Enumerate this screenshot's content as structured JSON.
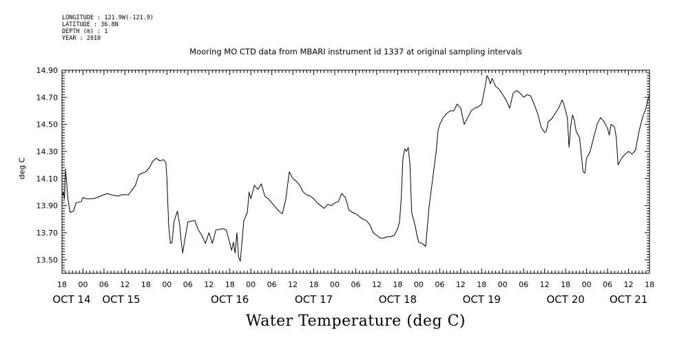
{
  "header": {
    "longitude": "LONGITUDE : 121.9W(-121.9)",
    "latitude": "LATITUDE : 36.8N",
    "depth": "DEPTH (m) : 1",
    "year": "YEAR : 2010"
  },
  "chart_data": {
    "type": "line",
    "title": "Mooring MO CTD data from MBARI instrument id 1337 at original sampling intervals",
    "xlabel": "Water Temperature (deg C)",
    "ylabel": "deg C",
    "ylim": [
      13.4,
      14.9
    ],
    "yticks": [
      "13.50",
      "13.70",
      "13.90",
      "14.10",
      "14.30",
      "14.50",
      "14.70",
      "14.90"
    ],
    "xlim_hours": [
      0,
      168
    ],
    "xticks_hour_labels": [
      "18",
      "00",
      "06",
      "12",
      "18",
      "00",
      "06",
      "12",
      "18",
      "00",
      "06",
      "12",
      "18",
      "00",
      "06",
      "12",
      "18",
      "00",
      "06",
      "12",
      "18",
      "00",
      "06",
      "12",
      "18",
      "00",
      "06",
      "12",
      "18"
    ],
    "xticks_day_labels": [
      "OCT 14",
      "OCT 15",
      "OCT 16",
      "OCT 17",
      "OCT 18",
      "OCT 19",
      "OCT 20",
      "OCT 21"
    ],
    "grid": false,
    "series": [
      {
        "values": [
          [
            0.0,
            13.97
          ],
          [
            0.4,
            14.0
          ],
          [
            0.7,
            13.95
          ],
          [
            1.0,
            14.17
          ],
          [
            1.3,
            14.08
          ],
          [
            1.7,
            13.95
          ],
          [
            2.3,
            13.85
          ],
          [
            3.3,
            13.86
          ],
          [
            4.0,
            13.92
          ],
          [
            5.5,
            13.93
          ],
          [
            6.0,
            13.96
          ],
          [
            7.0,
            13.95
          ],
          [
            9.0,
            13.95
          ],
          [
            10.0,
            13.96
          ],
          [
            12.0,
            13.98
          ],
          [
            13.0,
            13.99
          ],
          [
            14.0,
            13.98
          ],
          [
            16.0,
            13.97
          ],
          [
            17.0,
            13.98
          ],
          [
            18.0,
            13.98
          ],
          [
            19.0,
            13.98
          ],
          [
            21.0,
            14.05
          ],
          [
            22.0,
            14.13
          ],
          [
            24.0,
            14.15
          ],
          [
            25.0,
            14.18
          ],
          [
            26.0,
            14.23
          ],
          [
            27.0,
            14.25
          ],
          [
            28.0,
            14.23
          ],
          [
            29.0,
            14.24
          ],
          [
            29.7,
            14.22
          ],
          [
            30.0,
            14.1
          ],
          [
            30.5,
            13.75
          ],
          [
            31.0,
            13.62
          ],
          [
            31.5,
            13.63
          ],
          [
            32.0,
            13.78
          ],
          [
            33.0,
            13.86
          ],
          [
            33.7,
            13.75
          ],
          [
            34.0,
            13.66
          ],
          [
            34.5,
            13.55
          ],
          [
            35.0,
            13.63
          ],
          [
            36.0,
            13.78
          ],
          [
            38.0,
            13.79
          ],
          [
            39.0,
            13.72
          ],
          [
            40.0,
            13.68
          ],
          [
            41.0,
            13.62
          ],
          [
            42.0,
            13.7
          ],
          [
            43.0,
            13.62
          ],
          [
            44.0,
            13.72
          ],
          [
            46.0,
            13.73
          ],
          [
            47.0,
            13.72
          ],
          [
            48.0,
            13.62
          ],
          [
            48.5,
            13.57
          ],
          [
            49.0,
            13.63
          ],
          [
            49.5,
            13.55
          ],
          [
            50.0,
            13.7
          ],
          [
            50.5,
            13.52
          ],
          [
            51.0,
            13.49
          ],
          [
            52.0,
            13.79
          ],
          [
            53.0,
            13.85
          ],
          [
            53.5,
            14.0
          ],
          [
            54.0,
            13.95
          ],
          [
            55.0,
            14.05
          ],
          [
            56.0,
            14.02
          ],
          [
            57.0,
            14.06
          ],
          [
            58.0,
            13.97
          ],
          [
            59.0,
            13.95
          ],
          [
            60.0,
            13.92
          ],
          [
            61.0,
            13.89
          ],
          [
            62.0,
            13.86
          ],
          [
            63.0,
            13.84
          ],
          [
            64.0,
            13.95
          ],
          [
            65.0,
            14.15
          ],
          [
            66.0,
            14.1
          ],
          [
            67.0,
            14.08
          ],
          [
            68.0,
            14.05
          ],
          [
            69.0,
            14.0
          ],
          [
            70.0,
            13.98
          ],
          [
            71.0,
            13.97
          ],
          [
            72.0,
            13.95
          ],
          [
            73.0,
            13.92
          ],
          [
            74.0,
            13.9
          ],
          [
            75.0,
            13.88
          ],
          [
            76.0,
            13.91
          ],
          [
            77.0,
            13.9
          ],
          [
            78.0,
            13.92
          ],
          [
            79.0,
            13.93
          ],
          [
            79.5,
            13.96
          ],
          [
            80.0,
            13.99
          ],
          [
            81.0,
            13.96
          ],
          [
            81.5,
            13.92
          ],
          [
            82.0,
            13.87
          ],
          [
            83.0,
            13.85
          ],
          [
            84.0,
            13.84
          ],
          [
            85.0,
            13.82
          ],
          [
            86.0,
            13.8
          ],
          [
            87.0,
            13.79
          ],
          [
            88.0,
            13.76
          ],
          [
            89.0,
            13.7
          ],
          [
            90.0,
            13.68
          ],
          [
            91.0,
            13.66
          ],
          [
            92.0,
            13.66
          ],
          [
            93.0,
            13.67
          ],
          [
            94.0,
            13.67
          ],
          [
            95.0,
            13.68
          ],
          [
            96.0,
            13.73
          ],
          [
            96.5,
            13.78
          ],
          [
            97.0,
            13.95
          ],
          [
            97.5,
            14.25
          ],
          [
            98.0,
            14.32
          ],
          [
            98.5,
            14.3
          ],
          [
            99.0,
            14.33
          ],
          [
            99.5,
            14.2
          ],
          [
            100.0,
            13.85
          ],
          [
            101.0,
            13.75
          ],
          [
            101.5,
            13.68
          ],
          [
            102.0,
            13.63
          ],
          [
            103.0,
            13.62
          ],
          [
            104.0,
            13.6
          ],
          [
            105.0,
            13.9
          ],
          [
            106.0,
            14.1
          ],
          [
            107.0,
            14.3
          ],
          [
            107.5,
            14.45
          ],
          [
            108.0,
            14.5
          ],
          [
            109.0,
            14.55
          ],
          [
            110.0,
            14.58
          ],
          [
            111.0,
            14.6
          ],
          [
            112.0,
            14.6
          ],
          [
            113.0,
            14.65
          ],
          [
            114.0,
            14.62
          ],
          [
            115.0,
            14.5
          ],
          [
            116.0,
            14.55
          ],
          [
            117.0,
            14.6
          ],
          [
            118.0,
            14.62
          ],
          [
            119.0,
            14.63
          ],
          [
            120.0,
            14.65
          ],
          [
            121.0,
            14.78
          ],
          [
            121.5,
            14.86
          ],
          [
            122.0,
            14.84
          ],
          [
            122.5,
            14.8
          ],
          [
            123.0,
            14.84
          ],
          [
            124.0,
            14.78
          ],
          [
            125.0,
            14.76
          ],
          [
            126.0,
            14.72
          ],
          [
            127.0,
            14.68
          ],
          [
            128.0,
            14.62
          ],
          [
            129.0,
            14.73
          ],
          [
            130.0,
            14.75
          ],
          [
            131.0,
            14.73
          ],
          [
            132.0,
            14.7
          ],
          [
            133.0,
            14.72
          ],
          [
            134.0,
            14.71
          ],
          [
            135.0,
            14.65
          ],
          [
            136.0,
            14.58
          ],
          [
            137.0,
            14.48
          ],
          [
            138.0,
            14.44
          ],
          [
            138.5,
            14.45
          ],
          [
            139.0,
            14.52
          ],
          [
            140.0,
            14.54
          ],
          [
            141.0,
            14.58
          ],
          [
            142.0,
            14.62
          ],
          [
            143.0,
            14.68
          ],
          [
            143.5,
            14.65
          ],
          [
            144.0,
            14.6
          ],
          [
            144.5,
            14.55
          ],
          [
            145.0,
            14.33
          ],
          [
            145.5,
            14.5
          ],
          [
            146.0,
            14.57
          ],
          [
            146.5,
            14.53
          ],
          [
            147.0,
            14.45
          ],
          [
            148.0,
            14.4
          ],
          [
            149.0,
            14.15
          ],
          [
            149.5,
            14.14
          ],
          [
            150.0,
            14.25
          ],
          [
            151.0,
            14.3
          ],
          [
            152.0,
            14.4
          ],
          [
            153.0,
            14.5
          ],
          [
            154.0,
            14.55
          ],
          [
            155.0,
            14.52
          ],
          [
            156.0,
            14.47
          ],
          [
            156.5,
            14.42
          ],
          [
            157.0,
            14.5
          ],
          [
            158.0,
            14.48
          ],
          [
            158.5,
            14.4
          ],
          [
            159.0,
            14.2
          ],
          [
            160.0,
            14.25
          ],
          [
            161.0,
            14.28
          ],
          [
            162.0,
            14.3
          ],
          [
            163.0,
            14.28
          ],
          [
            164.0,
            14.31
          ],
          [
            165.0,
            14.45
          ],
          [
            166.0,
            14.55
          ],
          [
            167.0,
            14.62
          ],
          [
            167.5,
            14.68
          ],
          [
            168.0,
            14.72
          ]
        ]
      }
    ]
  }
}
